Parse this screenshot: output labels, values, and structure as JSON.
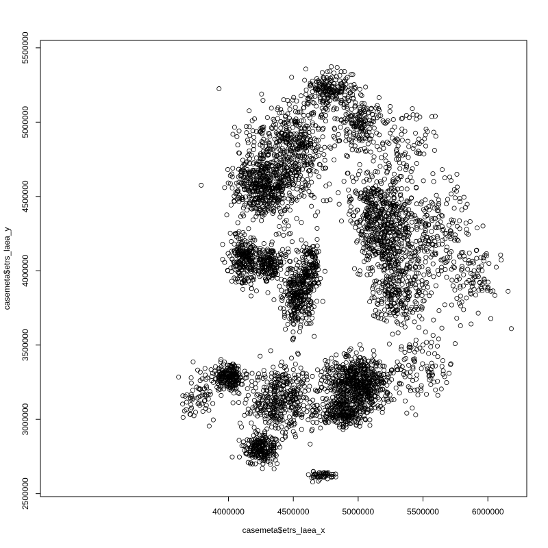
{
  "chart_data": {
    "type": "scatter",
    "title": "",
    "xlabel": "casemeta$etrs_laea_x",
    "ylabel": "casemeta$etrs_laea_y",
    "xlim": [
      2550000,
      6300000
    ],
    "ylim": [
      2480000,
      5550000
    ],
    "xticks": [
      4000000,
      4500000,
      5000000,
      5500000,
      6000000
    ],
    "yticks": [
      2500000,
      3000000,
      3500000,
      4000000,
      4500000,
      5000000,
      5500000
    ],
    "xtick_labels": [
      "4000000",
      "4500000",
      "5000000",
      "5500000",
      "6000000"
    ],
    "ytick_labels": [
      "2500000",
      "3000000",
      "3500000",
      "4000000",
      "4500000",
      "5000000",
      "5500000"
    ],
    "grid": false,
    "legend": "none",
    "marker": "open-circle",
    "colors": {
      "points": "#000000",
      "axes": "#000000",
      "background": "#ffffff"
    },
    "series": [
      {
        "clusters": [
          {
            "center": [
              4350000,
              4650000
            ],
            "spread": [
              260000,
              330000
            ],
            "count": 520
          },
          {
            "center": [
              4550000,
              4900000
            ],
            "spread": [
              220000,
              260000
            ],
            "count": 260
          },
          {
            "center": [
              4780000,
              5220000
            ],
            "spread": [
              150000,
              110000
            ],
            "count": 190
          },
          {
            "center": [
              4250000,
              4550000
            ],
            "spread": [
              180000,
              160000
            ],
            "count": 220
          },
          {
            "center": [
              4120000,
              4080000
            ],
            "spread": [
              110000,
              150000
            ],
            "count": 240
          },
          {
            "center": [
              4320000,
              4050000
            ],
            "spread": [
              110000,
              100000
            ],
            "count": 180
          },
          {
            "center": [
              4530000,
              3820000
            ],
            "spread": [
              110000,
              190000
            ],
            "count": 280
          },
          {
            "center": [
              4620000,
              4020000
            ],
            "spread": [
              80000,
              150000
            ],
            "count": 160
          },
          {
            "center": [
              5150000,
              4420000
            ],
            "spread": [
              230000,
              260000
            ],
            "count": 380
          },
          {
            "center": [
              5250000,
              4200000
            ],
            "spread": [
              220000,
              180000
            ],
            "count": 280
          },
          {
            "center": [
              5300000,
              3850000
            ],
            "spread": [
              220000,
              220000
            ],
            "count": 250
          },
          {
            "center": [
              5620000,
              4250000
            ],
            "spread": [
              260000,
              330000
            ],
            "count": 180
          },
          {
            "center": [
              5900000,
              3950000
            ],
            "spread": [
              190000,
              220000
            ],
            "count": 90
          },
          {
            "center": [
              4990000,
              3250000
            ],
            "spread": [
              230000,
              160000
            ],
            "count": 620
          },
          {
            "center": [
              4890000,
              3050000
            ],
            "spread": [
              190000,
              90000
            ],
            "count": 260
          },
          {
            "center": [
              4400000,
              3130000
            ],
            "spread": [
              230000,
              210000
            ],
            "count": 400
          },
          {
            "center": [
              4250000,
              2800000
            ],
            "spread": [
              120000,
              90000
            ],
            "count": 220
          },
          {
            "center": [
              4010000,
              3290000
            ],
            "spread": [
              100000,
              90000
            ],
            "count": 220
          },
          {
            "center": [
              3780000,
              3150000
            ],
            "spread": [
              120000,
              160000
            ],
            "count": 70
          },
          {
            "center": [
              4720000,
              2620000
            ],
            "spread": [
              80000,
              25000
            ],
            "count": 50
          },
          {
            "center": [
              5480000,
              3350000
            ],
            "spread": [
              200000,
              220000
            ],
            "count": 100
          },
          {
            "center": [
              5350000,
              4850000
            ],
            "spread": [
              220000,
              230000
            ],
            "count": 90
          },
          {
            "center": [
              5000000,
              5000000
            ],
            "spread": [
              160000,
              180000
            ],
            "count": 180
          }
        ]
      }
    ]
  }
}
